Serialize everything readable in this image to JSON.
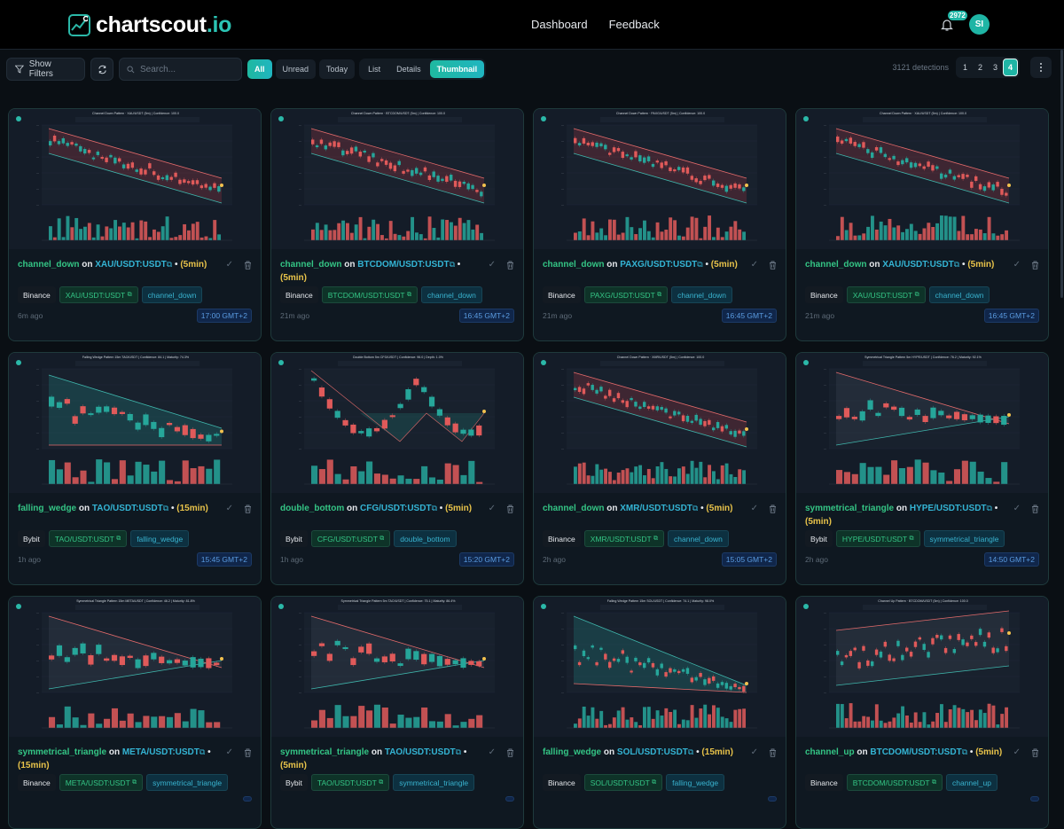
{
  "header": {
    "logo_main": "chartscout",
    "logo_suffix": ".io",
    "nav": [
      "Dashboard",
      "Feedback"
    ],
    "notification_count": "2972",
    "avatar_initials": "SI"
  },
  "toolbar": {
    "show_filters_label": "Show Filters",
    "search_placeholder": "Search...",
    "read_filters": [
      "All",
      "Unread",
      "Today"
    ],
    "read_filter_active": "All",
    "views": [
      "List",
      "Details",
      "Thumbnail"
    ],
    "view_active": "Thumbnail",
    "detections_label": "3121 detections",
    "pages": [
      "1",
      "2",
      "3",
      "4"
    ],
    "page_active": "4"
  },
  "colors": {
    "accent": "#1fb5a5",
    "pattern_text": "#34c585",
    "symbol_text": "#34b4d4",
    "timeframe_text": "#e8c34a",
    "bull_candle": "#26a69a",
    "bear_candle": "#e05a5a",
    "background": "#0a0f14"
  },
  "cards": [
    {
      "pattern": "channel_down",
      "on": "on",
      "symbol": "XAU/USDT:USDT",
      "link_icon": "⧉",
      "sep": "•",
      "timeframe": "(5min)",
      "exchange": "Binance",
      "ago": "6m ago",
      "time": "17:00 GMT+2",
      "chart_title": "Channel Down Pattern · XAU/USDT (5m) | Confidence: 100.0",
      "shape": "channel_down"
    },
    {
      "pattern": "channel_down",
      "on": "on",
      "symbol": "BTCDOM/USDT:USDT",
      "link_icon": "⧉",
      "sep": "•",
      "timeframe": "(5min)",
      "exchange": "Binance",
      "ago": "21m ago",
      "time": "16:45 GMT+2",
      "chart_title": "Channel Down Pattern · BTCDOM/USDT (5m) | Confidence: 100.0",
      "shape": "channel_down"
    },
    {
      "pattern": "channel_down",
      "on": "on",
      "symbol": "PAXG/USDT:USDT",
      "link_icon": "⧉",
      "sep": "•",
      "timeframe": "(5min)",
      "exchange": "Binance",
      "ago": "21m ago",
      "time": "16:45 GMT+2",
      "chart_title": "Channel Down Pattern · PAXG/USDT (5m) | Confidence: 100.0",
      "shape": "channel_down"
    },
    {
      "pattern": "channel_down",
      "on": "on",
      "symbol": "XAU/USDT:USDT",
      "link_icon": "⧉",
      "sep": "•",
      "timeframe": "(5min)",
      "exchange": "Binance",
      "ago": "21m ago",
      "time": "16:45 GMT+2",
      "chart_title": "Channel Down Pattern · XAU/USDT (5m) | Confidence: 100.0",
      "shape": "channel_down"
    },
    {
      "pattern": "falling_wedge",
      "on": "on",
      "symbol": "TAO/USDT:USDT",
      "link_icon": "⧉",
      "sep": "•",
      "timeframe": "(15min)",
      "exchange": "Bybit",
      "ago": "1h ago",
      "time": "15:45 GMT+2",
      "chart_title": "Falling Wedge Pattern 15m TAO/USDT | Confidence: 84.1 | Maturity: 74.3%",
      "shape": "falling_wedge"
    },
    {
      "pattern": "double_bottom",
      "on": "on",
      "symbol": "CFG/USDT:USDT",
      "link_icon": "⧉",
      "sep": "•",
      "timeframe": "(5min)",
      "exchange": "Bybit",
      "ago": "1h ago",
      "time": "15:20 GMT+2",
      "chart_title": "Double Bottom 5m CFG/USDT | Confidence: 96.0 | Depth: 1.0%",
      "shape": "double_bottom"
    },
    {
      "pattern": "channel_down",
      "on": "on",
      "symbol": "XMR/USDT:USDT",
      "link_icon": "⧉",
      "sep": "•",
      "timeframe": "(5min)",
      "exchange": "Binance",
      "ago": "2h ago",
      "time": "15:05 GMT+2",
      "chart_title": "Channel Down Pattern · XMR/USDT (5m) | Confidence: 100.0",
      "shape": "channel_down2"
    },
    {
      "pattern": "symmetrical_triangle",
      "on": "on",
      "symbol": "HYPE/USDT:USDT",
      "link_icon": "⧉",
      "sep": "•",
      "timeframe": "(5min)",
      "exchange": "Bybit",
      "ago": "2h ago",
      "time": "14:50 GMT+2",
      "chart_title": "Symmetrical Triangle Pattern 5m HYPE/USDT | Confidence: 76.2 | Maturity: 92.1%",
      "shape": "sym_triangle"
    },
    {
      "pattern": "symmetrical_triangle",
      "on": "on",
      "symbol": "META/USDT:USDT",
      "link_icon": "⧉",
      "sep": "•",
      "timeframe": "(15min)",
      "exchange": "Binance",
      "ago": "",
      "time": "",
      "chart_title": "Symmetrical Triangle Pattern 15m META/USDT | Confidence: 46.2 | Maturity: 81.8%",
      "shape": "sym_triangle2"
    },
    {
      "pattern": "symmetrical_triangle",
      "on": "on",
      "symbol": "TAO/USDT:USDT",
      "link_icon": "⧉",
      "sep": "•",
      "timeframe": "(5min)",
      "exchange": "Bybit",
      "ago": "",
      "time": "",
      "chart_title": "Symmetrical Triangle Pattern 5m TAO/USDT | Confidence: 75.1 | Maturity: 86.4%",
      "shape": "sym_triangle2"
    },
    {
      "pattern": "falling_wedge",
      "on": "on",
      "symbol": "SOL/USDT:USDT",
      "link_icon": "⧉",
      "sep": "•",
      "timeframe": "(15min)",
      "exchange": "Binance",
      "ago": "",
      "time": "",
      "chart_title": "Falling Wedge Pattern 15m SOL/USDT | Confidence: 74.1 | Maturity: 98.0%",
      "shape": "falling_wedge2"
    },
    {
      "pattern": "channel_up",
      "on": "on",
      "symbol": "BTCDOM/USDT:USDT",
      "link_icon": "⧉",
      "sep": "•",
      "timeframe": "(5min)",
      "exchange": "Binance",
      "ago": "",
      "time": "",
      "chart_title": "Channel Up Pattern · BTCDOM/USDT (5m) | Confidence: 100.0",
      "shape": "channel_up"
    }
  ]
}
